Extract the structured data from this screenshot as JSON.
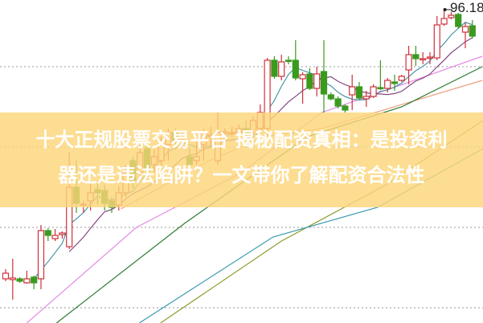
{
  "title": {
    "line1": "十大正规股票交易平台 揭秘配资真相：是投资利",
    "line2": "器还是违法陷阱？一文带你了解配资合法性"
  },
  "chart_data": {
    "type": "candlestick",
    "ylim": [
      57.18,
      97.38
    ],
    "grid": true,
    "grid_values": [
      89.08,
      79.08,
      69.08,
      59.08
    ],
    "high_marker": {
      "label": "96.18",
      "value": 96.18,
      "index": 62
    },
    "colors": {
      "up": "#d0303a",
      "down": "#3a9a1e",
      "banner": "#fdd67a"
    },
    "candles": [
      [
        62.68,
        63.38,
        63.88,
        62.38
      ],
      [
        62.58,
        62.78,
        65.18,
        60.08
      ],
      [
        62.68,
        62.38,
        62.88,
        62.18
      ],
      [
        62.18,
        62.68,
        63.68,
        62.08
      ],
      [
        62.88,
        62.18,
        63.08,
        61.38
      ],
      [
        62.68,
        68.68,
        69.38,
        61.38
      ],
      [
        68.68,
        68.08,
        68.98,
        67.38
      ],
      [
        67.68,
        68.08,
        68.88,
        67.38
      ],
      [
        68.18,
        68.38,
        68.58,
        67.68
      ],
      [
        66.68,
        74.08,
        78.38,
        66.38
      ],
      [
        74.08,
        72.08,
        77.38,
        70.88
      ],
      [
        71.88,
        71.98,
        72.38,
        70.88
      ],
      [
        72.38,
        73.38,
        74.88,
        71.18
      ],
      [
        73.78,
        73.38,
        74.88,
        71.88
      ],
      [
        73.68,
        72.08,
        74.38,
        71.18
      ],
      [
        72.38,
        71.58,
        72.88,
        70.88
      ],
      [
        71.88,
        73.38,
        74.18,
        71.18
      ],
      [
        73.38,
        75.88,
        76.88,
        72.88
      ],
      [
        77.38,
        74.88,
        77.88,
        73.88
      ],
      [
        75.88,
        78.38,
        79.38,
        74.88
      ],
      [
        78.88,
        76.38,
        79.58,
        75.38
      ],
      [
        76.88,
        77.88,
        78.88,
        75.88
      ],
      [
        77.38,
        79.38,
        80.38,
        76.38
      ],
      [
        79.38,
        80.88,
        81.38,
        77.38
      ],
      [
        80.88,
        79.88,
        81.38,
        78.88
      ],
      [
        79.78,
        79.98,
        80.88,
        78.88
      ],
      [
        77.88,
        76.88,
        78.88,
        76.18
      ],
      [
        77.38,
        77.88,
        79.88,
        76.88
      ],
      [
        79.38,
        80.88,
        81.38,
        77.38
      ],
      [
        80.38,
        80.58,
        81.58,
        79.18
      ],
      [
        77.38,
        80.88,
        83.38,
        76.88
      ],
      [
        80.78,
        80.98,
        81.38,
        80.18
      ],
      [
        80.78,
        80.88,
        81.58,
        80.38
      ],
      [
        80.58,
        81.38,
        81.88,
        79.88
      ],
      [
        81.38,
        80.88,
        82.38,
        80.38
      ],
      [
        80.88,
        82.38,
        82.88,
        80.58
      ],
      [
        81.38,
        83.38,
        84.38,
        80.88
      ],
      [
        81.38,
        89.88,
        90.18,
        80.38
      ],
      [
        89.88,
        87.88,
        90.38,
        87.58
      ],
      [
        87.88,
        89.68,
        90.58,
        87.38
      ],
      [
        89.88,
        89.78,
        90.38,
        89.38
      ],
      [
        89.88,
        87.68,
        92.38,
        87.38
      ],
      [
        87.58,
        88.08,
        88.38,
        84.48
      ],
      [
        88.18,
        86.38,
        88.88,
        86.18
      ],
      [
        86.38,
        88.18,
        89.08,
        85.38
      ],
      [
        88.48,
        85.68,
        92.38,
        83.38
      ],
      [
        85.58,
        85.08,
        85.88,
        84.88
      ],
      [
        85.08,
        84.18,
        85.38,
        83.88
      ],
      [
        84.18,
        83.68,
        84.38,
        83.38
      ],
      [
        85.58,
        86.58,
        88.08,
        83.68
      ],
      [
        86.58,
        85.18,
        87.18,
        84.98
      ],
      [
        85.08,
        85.38,
        86.08,
        84.08
      ],
      [
        85.38,
        86.58,
        86.88,
        85.18
      ],
      [
        86.48,
        86.38,
        89.88,
        86.18
      ],
      [
        86.38,
        87.38,
        87.68,
        85.88
      ],
      [
        87.18,
        86.98,
        88.08,
        86.08
      ],
      [
        87.38,
        87.88,
        88.08,
        87.18
      ],
      [
        88.68,
        90.58,
        91.68,
        86.88
      ],
      [
        90.58,
        90.08,
        91.68,
        89.18
      ],
      [
        90.08,
        90.08,
        90.88,
        89.38
      ],
      [
        90.18,
        90.28,
        90.88,
        89.38
      ],
      [
        90.18,
        94.28,
        95.38,
        89.88
      ],
      [
        94.38,
        95.08,
        96.18,
        94.18
      ],
      [
        95.18,
        95.48,
        95.88,
        94.98
      ],
      [
        95.58,
        94.08,
        95.78,
        93.78
      ],
      [
        93.38,
        94.08,
        94.58,
        91.38
      ],
      [
        94.18,
        92.88,
        94.88,
        92.58
      ]
    ],
    "candle_fields": [
      "open",
      "close",
      "high",
      "low"
    ],
    "moving_averages": [
      {
        "period": 5,
        "color": "#3a8fa0"
      },
      {
        "period": 10,
        "color": "#7a3a7a"
      }
    ],
    "trend_lines": [
      {
        "color": "#e48be4",
        "points": [
          [
            3,
            57.18
          ],
          [
            18.5,
            69.08
          ],
          [
            33.3,
            75.88
          ],
          [
            44.7,
            83.38
          ],
          [
            56.8,
            87.08
          ],
          [
            67.4,
            90.38
          ]
        ]
      },
      {
        "color": "#eba184",
        "points": [
          [
            16.3,
            71.38
          ],
          [
            28.8,
            77.38
          ],
          [
            36.7,
            80.38
          ],
          [
            44.7,
            81.38
          ],
          [
            67.4,
            87.38
          ]
        ]
      },
      {
        "color": "#2f7a30",
        "points": [
          [
            7.2,
            57.18
          ],
          [
            25.3,
            69.58
          ],
          [
            42.7,
            80.38
          ],
          [
            56,
            84.08
          ],
          [
            67.4,
            89.08
          ]
        ]
      },
      {
        "color": "#8f9a2c",
        "points": [
          [
            21.9,
            57.18
          ],
          [
            39,
            67.38
          ],
          [
            53.8,
            74.38
          ],
          [
            67.5,
            82.38
          ]
        ]
      },
      {
        "color": "#3a9ab0",
        "points": [
          [
            18.9,
            57.18
          ],
          [
            37.8,
            67.88
          ],
          [
            52.6,
            71.58
          ],
          [
            67.5,
            78.88
          ]
        ]
      }
    ]
  }
}
